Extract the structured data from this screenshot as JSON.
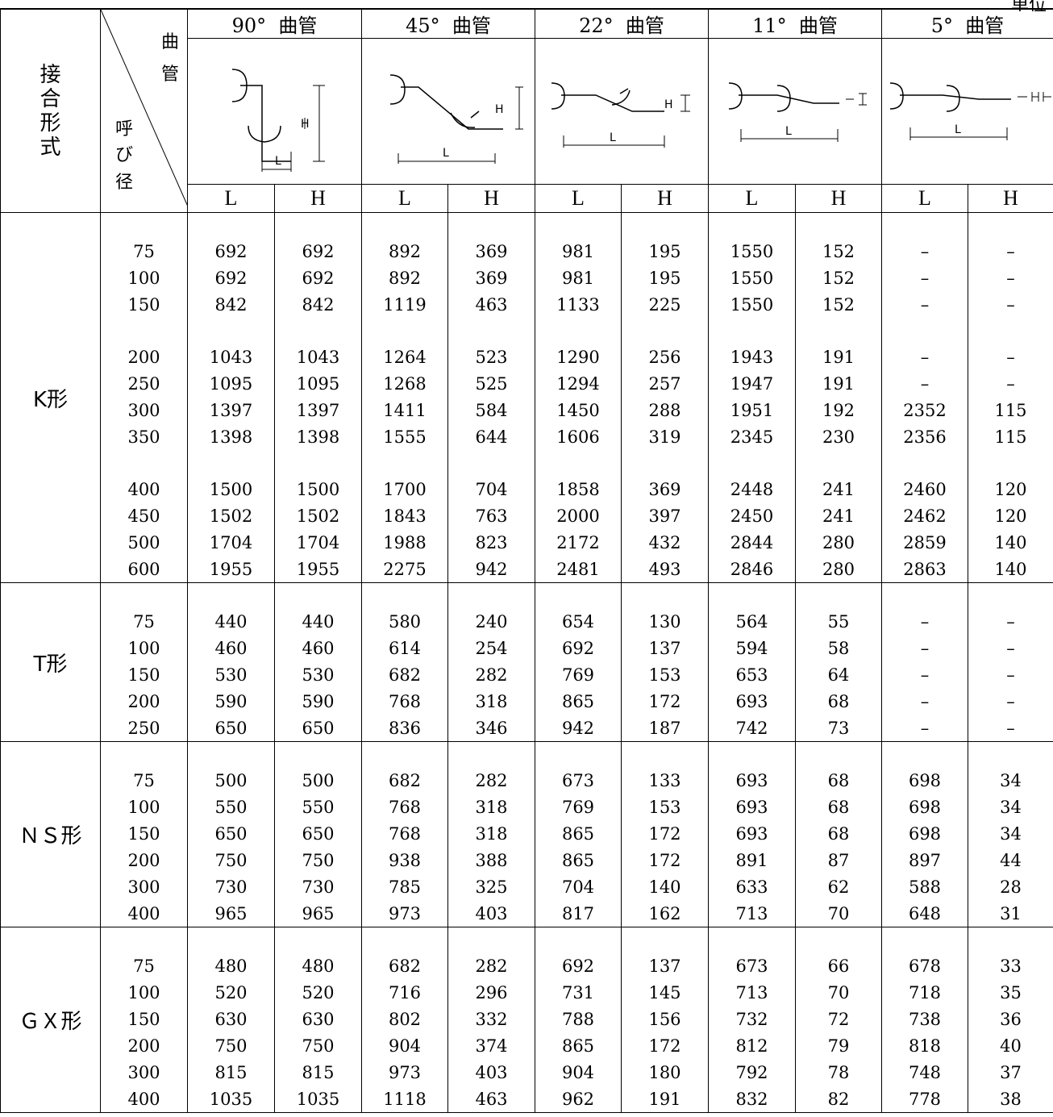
{
  "unit_label": "単位",
  "header": {
    "joint_label": [
      "接",
      "合",
      "形",
      "式"
    ],
    "corner_top": [
      "曲",
      "管"
    ],
    "corner_bottom": [
      "呼",
      "び",
      "径"
    ],
    "bends": [
      {
        "angle": "90°",
        "name": "曲管"
      },
      {
        "angle": "45°",
        "name": "曲管"
      },
      {
        "angle": "22°",
        "name": "曲管"
      },
      {
        "angle": "11°",
        "name": "曲管"
      },
      {
        "angle": "5°",
        "name": "曲管"
      }
    ],
    "dim_l": "L",
    "dim_h": "H",
    "diagram_l": "L",
    "diagram_h": "H"
  },
  "groups": [
    {
      "name": "K形",
      "blocks": [
        [
          [
            "75",
            "692",
            "692",
            "892",
            "369",
            "981",
            "195",
            "1550",
            "152",
            "–",
            "–"
          ],
          [
            "100",
            "692",
            "692",
            "892",
            "369",
            "981",
            "195",
            "1550",
            "152",
            "–",
            "–"
          ],
          [
            "150",
            "842",
            "842",
            "1119",
            "463",
            "1133",
            "225",
            "1550",
            "152",
            "–",
            "–"
          ]
        ],
        [
          [
            "200",
            "1043",
            "1043",
            "1264",
            "523",
            "1290",
            "256",
            "1943",
            "191",
            "–",
            "–"
          ],
          [
            "250",
            "1095",
            "1095",
            "1268",
            "525",
            "1294",
            "257",
            "1947",
            "191",
            "–",
            "–"
          ],
          [
            "300",
            "1397",
            "1397",
            "1411",
            "584",
            "1450",
            "288",
            "1951",
            "192",
            "2352",
            "115"
          ],
          [
            "350",
            "1398",
            "1398",
            "1555",
            "644",
            "1606",
            "319",
            "2345",
            "230",
            "2356",
            "115"
          ]
        ],
        [
          [
            "400",
            "1500",
            "1500",
            "1700",
            "704",
            "1858",
            "369",
            "2448",
            "241",
            "2460",
            "120"
          ],
          [
            "450",
            "1502",
            "1502",
            "1843",
            "763",
            "2000",
            "397",
            "2450",
            "241",
            "2462",
            "120"
          ],
          [
            "500",
            "1704",
            "1704",
            "1988",
            "823",
            "2172",
            "432",
            "2844",
            "280",
            "2859",
            "140"
          ],
          [
            "600",
            "1955",
            "1955",
            "2275",
            "942",
            "2481",
            "493",
            "2846",
            "280",
            "2863",
            "140"
          ]
        ]
      ]
    },
    {
      "name": "T形",
      "blocks": [
        [
          [
            "75",
            "440",
            "440",
            "580",
            "240",
            "654",
            "130",
            "564",
            "55",
            "–",
            "–"
          ],
          [
            "100",
            "460",
            "460",
            "614",
            "254",
            "692",
            "137",
            "594",
            "58",
            "–",
            "–"
          ],
          [
            "150",
            "530",
            "530",
            "682",
            "282",
            "769",
            "153",
            "653",
            "64",
            "–",
            "–"
          ],
          [
            "200",
            "590",
            "590",
            "768",
            "318",
            "865",
            "172",
            "693",
            "68",
            "–",
            "–"
          ],
          [
            "250",
            "650",
            "650",
            "836",
            "346",
            "942",
            "187",
            "742",
            "73",
            "–",
            "–"
          ]
        ]
      ]
    },
    {
      "name": "ＮＳ形",
      "blocks": [
        [
          [
            "75",
            "500",
            "500",
            "682",
            "282",
            "673",
            "133",
            "693",
            "68",
            "698",
            "34"
          ],
          [
            "100",
            "550",
            "550",
            "768",
            "318",
            "769",
            "153",
            "693",
            "68",
            "698",
            "34"
          ],
          [
            "150",
            "650",
            "650",
            "768",
            "318",
            "865",
            "172",
            "693",
            "68",
            "698",
            "34"
          ],
          [
            "200",
            "750",
            "750",
            "938",
            "388",
            "865",
            "172",
            "891",
            "87",
            "897",
            "44"
          ],
          [
            "300",
            "730",
            "730",
            "785",
            "325",
            "704",
            "140",
            "633",
            "62",
            "588",
            "28"
          ],
          [
            "400",
            "965",
            "965",
            "973",
            "403",
            "817",
            "162",
            "713",
            "70",
            "648",
            "31"
          ]
        ]
      ]
    },
    {
      "name": "ＧＸ形",
      "blocks": [
        [
          [
            "75",
            "480",
            "480",
            "682",
            "282",
            "692",
            "137",
            "673",
            "66",
            "678",
            "33"
          ],
          [
            "100",
            "520",
            "520",
            "716",
            "296",
            "731",
            "145",
            "713",
            "70",
            "718",
            "35"
          ],
          [
            "150",
            "630",
            "630",
            "802",
            "332",
            "788",
            "156",
            "732",
            "72",
            "738",
            "36"
          ],
          [
            "200",
            "750",
            "750",
            "904",
            "374",
            "865",
            "172",
            "812",
            "79",
            "818",
            "40"
          ],
          [
            "300",
            "815",
            "815",
            "973",
            "403",
            "904",
            "180",
            "792",
            "78",
            "748",
            "37"
          ],
          [
            "400",
            "1035",
            "1035",
            "1118",
            "463",
            "962",
            "191",
            "832",
            "82",
            "778",
            "38"
          ]
        ]
      ]
    }
  ]
}
